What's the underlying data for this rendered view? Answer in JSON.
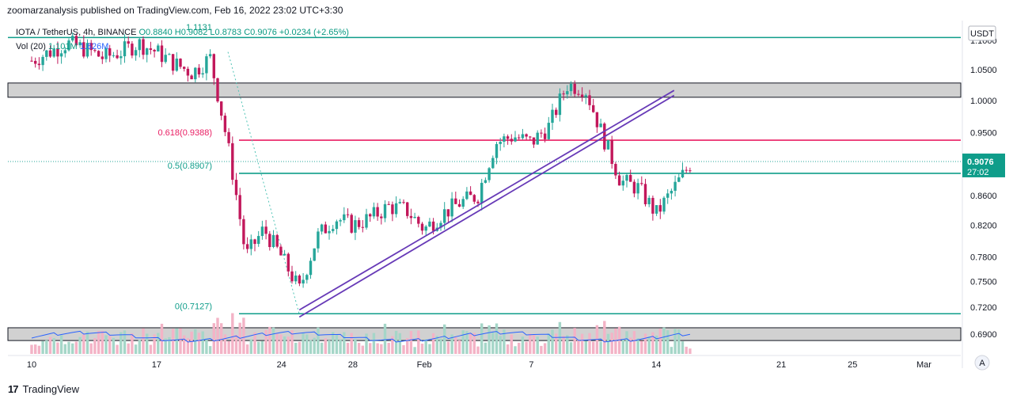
{
  "header": {
    "published": "zoomarzanalysis published on TradingView.com, Feb 16, 2022 23:02 UTC+3:30"
  },
  "legend": {
    "symbol": "IOTA / TetherUS, 4h, BINANCE",
    "ohlc": "O0.8840  H0.9082  L0.8783  C0.9076  +0.0234 (+2.65%)",
    "vol_label": "Vol (20)",
    "vol_value": "1.101M",
    "vol_ma": "1.626M",
    "top_clip": "1.1131"
  },
  "currency_button": "USDT",
  "footer": {
    "brand": "TradingView",
    "logo": "17"
  },
  "auto_scale_button": "A",
  "colors": {
    "up": "#26a69a",
    "down": "#c2185b",
    "fib": "#0f9d8a",
    "fib618": "#e91e63",
    "channel": "#673ab7",
    "zone": "#d1d1d1",
    "vol_ma": "#2962ff"
  },
  "chart_data": {
    "type": "candlestick",
    "symbol": "IOTA / TetherUS",
    "timeframe": "4h",
    "exchange": "BINANCE",
    "y_ticks": [
      "1.1000",
      "1.0500",
      "1.0000",
      "0.9500",
      "0.9000",
      "0.8600",
      "0.8200",
      "0.7800",
      "0.7500",
      "0.7200",
      "0.6900"
    ],
    "y_tick_values": [
      1.1,
      1.05,
      1.0,
      0.95,
      0.9,
      0.86,
      0.82,
      0.78,
      0.75,
      0.72,
      0.69
    ],
    "x_ticks": [
      "10",
      "17",
      "24",
      "28",
      "Feb",
      "7",
      "14",
      "21",
      "25",
      "Mar"
    ],
    "x_tick_dates": [
      "2022-01-10",
      "2022-01-17",
      "2022-01-24",
      "2022-01-28",
      "2022-02-01",
      "2022-02-07",
      "2022-02-14",
      "2022-02-21",
      "2022-02-25",
      "2022-03-01"
    ],
    "last_price": "0.9076",
    "countdown": "27:02",
    "fib_levels": [
      {
        "label": "0.618(0.9388)",
        "value": 0.9388
      },
      {
        "label": "0.5(0.8907)",
        "value": 0.8907
      },
      {
        "label": "0(0.7127)",
        "value": 0.7127
      }
    ],
    "horizontal_lines": [
      1.105
    ],
    "zones": [
      {
        "from": 1.005,
        "to": 1.028
      },
      {
        "from": 0.683,
        "to": 0.697
      }
    ],
    "channel": [
      {
        "from": [
          "2022-01-25",
          0.717
        ],
        "to": [
          "2022-02-15",
          1.016
        ]
      },
      {
        "from": [
          "2022-01-25",
          0.709
        ],
        "to": [
          "2022-02-15",
          1.008
        ]
      }
    ],
    "path_close": [
      [
        "2022-01-10",
        1.065
      ],
      [
        "2022-01-11",
        1.08
      ],
      [
        "2022-01-12",
        1.095
      ],
      [
        "2022-01-13",
        1.085
      ],
      [
        "2022-01-14",
        1.07
      ],
      [
        "2022-01-15",
        1.08
      ],
      [
        "2022-01-16",
        1.095
      ],
      [
        "2022-01-17",
        1.08
      ],
      [
        "2022-01-18",
        1.06
      ],
      [
        "2022-01-19",
        1.045
      ],
      [
        "2022-01-20",
        1.07
      ],
      [
        "2022-01-21",
        0.93
      ],
      [
        "2022-01-22",
        0.78
      ],
      [
        "2022-01-23",
        0.815
      ],
      [
        "2022-01-24",
        0.78
      ],
      [
        "2022-01-25",
        0.74
      ],
      [
        "2022-01-26",
        0.805
      ],
      [
        "2022-01-27",
        0.83
      ],
      [
        "2022-01-28",
        0.82
      ],
      [
        "2022-01-29",
        0.83
      ],
      [
        "2022-01-30",
        0.845
      ],
      [
        "2022-01-31",
        0.84
      ],
      [
        "2022-02-01",
        0.815
      ],
      [
        "2022-02-02",
        0.835
      ],
      [
        "2022-02-03",
        0.85
      ],
      [
        "2022-02-04",
        0.86
      ],
      [
        "2022-02-05",
        0.935
      ],
      [
        "2022-02-06",
        0.945
      ],
      [
        "2022-02-07",
        0.935
      ],
      [
        "2022-02-08",
        0.96
      ],
      [
        "2022-02-09",
        1.025
      ],
      [
        "2022-02-10",
        1.02
      ],
      [
        "2022-02-11",
        0.945
      ],
      [
        "2022-02-12",
        0.88
      ],
      [
        "2022-02-13",
        0.87
      ],
      [
        "2022-02-14",
        0.835
      ],
      [
        "2022-02-15",
        0.87
      ],
      [
        "2022-02-16",
        0.9076
      ]
    ]
  }
}
